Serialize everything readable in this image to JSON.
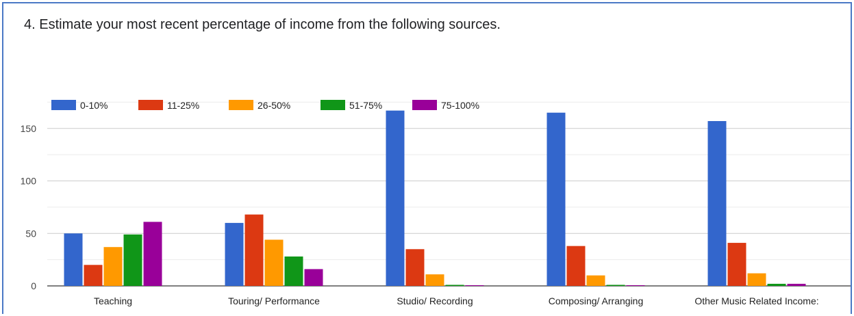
{
  "question": {
    "title": "4.  Estimate your most recent percentage of income from the following sources."
  },
  "chart_data": {
    "type": "bar",
    "categories": [
      "Teaching",
      "Touring/ Performance",
      "Studio/ Recording",
      "Composing/ Arranging",
      "Other Music Related Income:"
    ],
    "series": [
      {
        "name": "0-10%",
        "color": "#3366cc",
        "values": [
          50,
          60,
          167,
          165,
          157
        ]
      },
      {
        "name": "11-25%",
        "color": "#dc3912",
        "values": [
          20,
          68,
          35,
          38,
          41
        ]
      },
      {
        "name": "26-50%",
        "color": "#ff9900",
        "values": [
          37,
          44,
          11,
          10,
          12
        ]
      },
      {
        "name": "51-75%",
        "color": "#109618",
        "values": [
          49,
          28,
          1,
          1,
          2
        ]
      },
      {
        "name": "75-100%",
        "color": "#990099",
        "values": [
          61,
          16,
          0.5,
          0.5,
          2
        ]
      }
    ],
    "yticks": [
      0,
      50,
      100,
      150
    ],
    "ylim": [
      0,
      175
    ],
    "grid": true,
    "legend": "top-left"
  }
}
